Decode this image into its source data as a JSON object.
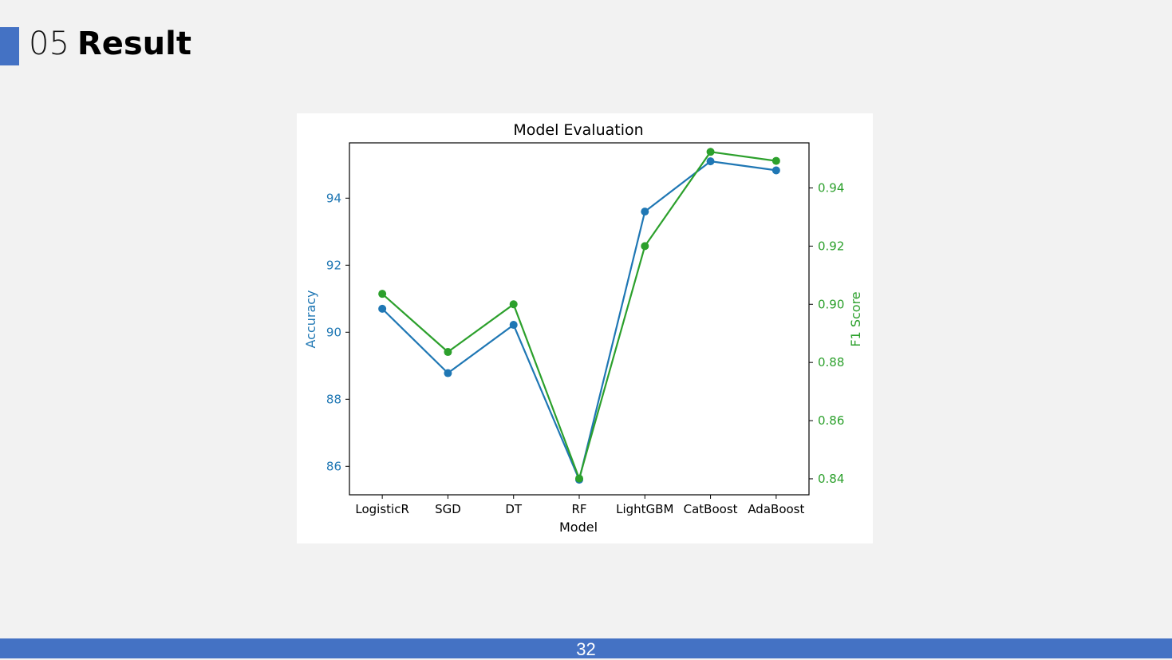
{
  "slide": {
    "number": "05",
    "title": "Result",
    "page": "32",
    "accent_color": "#4472c4"
  },
  "chart_data": {
    "type": "line",
    "title": "Model Evaluation",
    "xlabel": "Model",
    "categories": [
      "LogisticR",
      "SGD",
      "DT",
      "RF",
      "LightGBM",
      "CatBoost",
      "AdaBoost"
    ],
    "left_axis": {
      "label": "Accuracy",
      "color": "#1f77b4",
      "range": [
        85.15,
        95.65
      ],
      "ticks": [
        86,
        88,
        90,
        92,
        94
      ]
    },
    "right_axis": {
      "label": "F1 Score",
      "color": "#2ca02c",
      "range": [
        0.8345,
        0.9555
      ],
      "ticks": [
        0.84,
        0.86,
        0.88,
        0.9,
        0.92,
        0.94
      ],
      "tick_labels": [
        "0.84",
        "0.86",
        "0.88",
        "0.90",
        "0.92",
        "0.94"
      ]
    },
    "series": [
      {
        "axis": "left",
        "color": "#1f77b4",
        "values": [
          90.7,
          88.78,
          90.22,
          85.6,
          93.6,
          95.1,
          94.83
        ]
      },
      {
        "axis": "right",
        "color": "#2ca02c",
        "values": [
          0.9036,
          0.8836,
          0.9,
          0.8401,
          0.92,
          0.9524,
          0.9493
        ]
      }
    ],
    "grid": false,
    "legend": "none"
  }
}
